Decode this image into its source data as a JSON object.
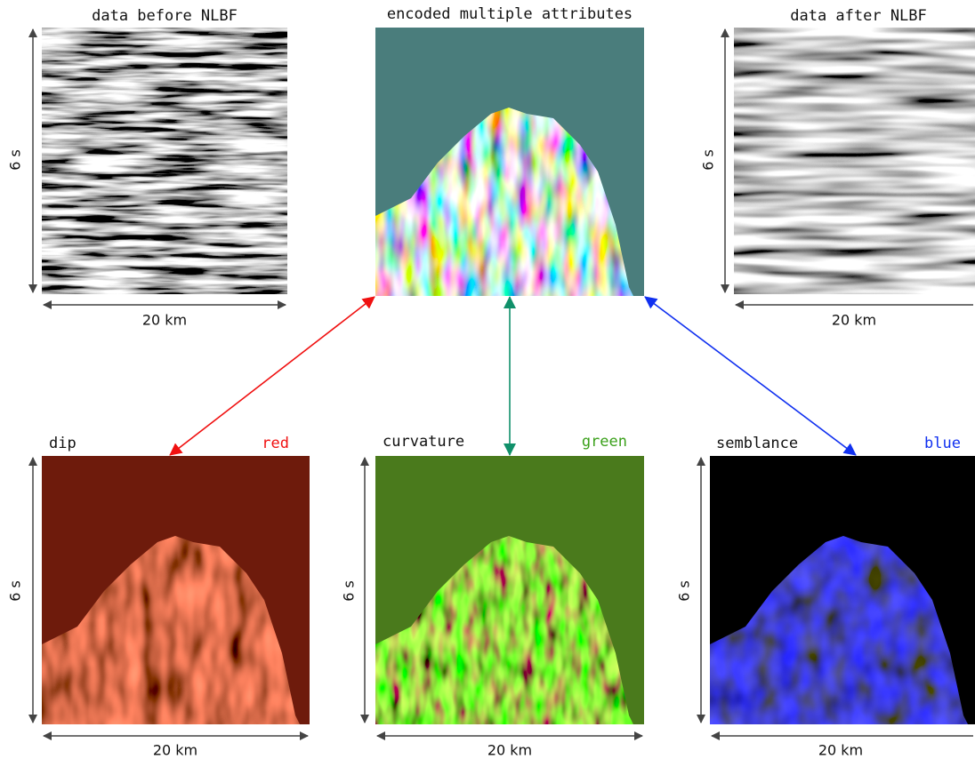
{
  "top_panels": [
    {
      "title": "data before NLBF",
      "x_label": "20 km",
      "y_label": "6 s"
    },
    {
      "title": "encoded multiple attributes"
    },
    {
      "title": "data after NLBF",
      "x_label": "20 km",
      "y_label": "6 s"
    }
  ],
  "bottom_panels": [
    {
      "title": "dip",
      "channel": "red",
      "x_label": "20 km",
      "y_label": "6 s"
    },
    {
      "title": "curvature",
      "channel": "green",
      "x_label": "20 km",
      "y_label": "6 s"
    },
    {
      "title": "semblance",
      "channel": "blue",
      "x_label": "20 km",
      "y_label": "6 s"
    }
  ]
}
